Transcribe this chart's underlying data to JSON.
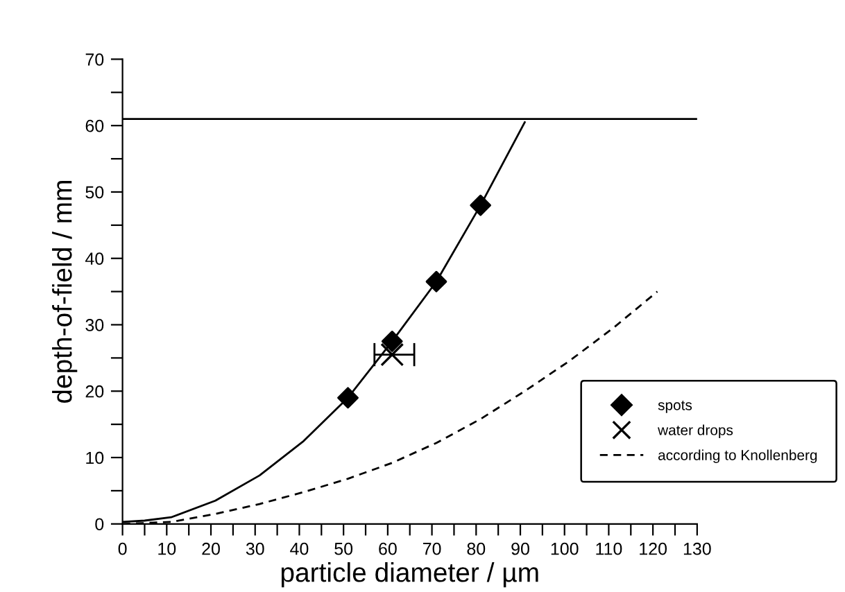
{
  "chart_data": {
    "type": "line",
    "xlabel": "particle diameter / µm",
    "ylabel": "depth-of-field / mm",
    "xlim": [
      0,
      130
    ],
    "ylim": [
      0,
      70
    ],
    "xticks": [
      0,
      {
        "value": 5,
        "label": null
      },
      10,
      {
        "value": 15,
        "label": null
      },
      20,
      {
        "value": 25,
        "label": null
      },
      30,
      {
        "value": 35,
        "label": null
      },
      40,
      {
        "value": 45,
        "label": null
      },
      50,
      {
        "value": 55,
        "label": null
      },
      60,
      {
        "value": 65,
        "label": null
      },
      70,
      {
        "value": 75,
        "label": null
      },
      80,
      {
        "value": 85,
        "label": null
      },
      90,
      {
        "value": 95,
        "label": null
      },
      100,
      {
        "value": 105,
        "label": null
      },
      110,
      {
        "value": 115,
        "label": null
      },
      120,
      {
        "value": 125,
        "label": null
      },
      130
    ],
    "yticks": [
      0,
      {
        "value": 5,
        "label": null
      },
      10,
      {
        "value": 15,
        "label": null
      },
      20,
      {
        "value": 25,
        "label": null
      },
      30,
      {
        "value": 35,
        "label": null
      },
      40,
      {
        "value": 45,
        "label": null
      },
      50,
      {
        "value": 55,
        "label": null
      },
      60,
      {
        "value": 65,
        "label": null
      },
      70
    ],
    "grid": false,
    "legend": "bottom right",
    "ref_lines": [
      {
        "axis": "y",
        "value": 61,
        "color": "#000000",
        "line_style": "solid"
      }
    ],
    "series": [
      {
        "color": "#000000",
        "line_style": "solid",
        "marker": "none",
        "x": [
          0,
          5,
          11,
          21,
          31,
          41,
          51,
          61,
          71,
          81,
          91
        ],
        "values": [
          0.3,
          0.5,
          1,
          3.5,
          7.3,
          12.5,
          19,
          27.5,
          36.5,
          48,
          60.5
        ]
      },
      {
        "type": "scatter",
        "name": "spots",
        "color": "#000000",
        "marker": "diamond",
        "x": [
          51,
          61,
          71,
          81
        ],
        "values": [
          19,
          27.5,
          36.5,
          48
        ]
      },
      {
        "type": "scatter",
        "name": "water drops",
        "color": "#000000",
        "marker": "cross",
        "x": [
          61
        ],
        "values": [
          25.5
        ],
        "xerrors": [
          [
            57,
            66
          ]
        ]
      },
      {
        "name": "according to Knollenberg",
        "color": "#000000",
        "line_style": "dashed",
        "marker": "none",
        "x": [
          0,
          11,
          21,
          31,
          41,
          51,
          61,
          71,
          81,
          91,
          101,
          111,
          121
        ],
        "values": [
          0,
          0.3,
          1.5,
          3,
          4.8,
          6.8,
          9.2,
          12.2,
          15.8,
          20,
          24.5,
          29.5,
          35
        ]
      }
    ]
  }
}
